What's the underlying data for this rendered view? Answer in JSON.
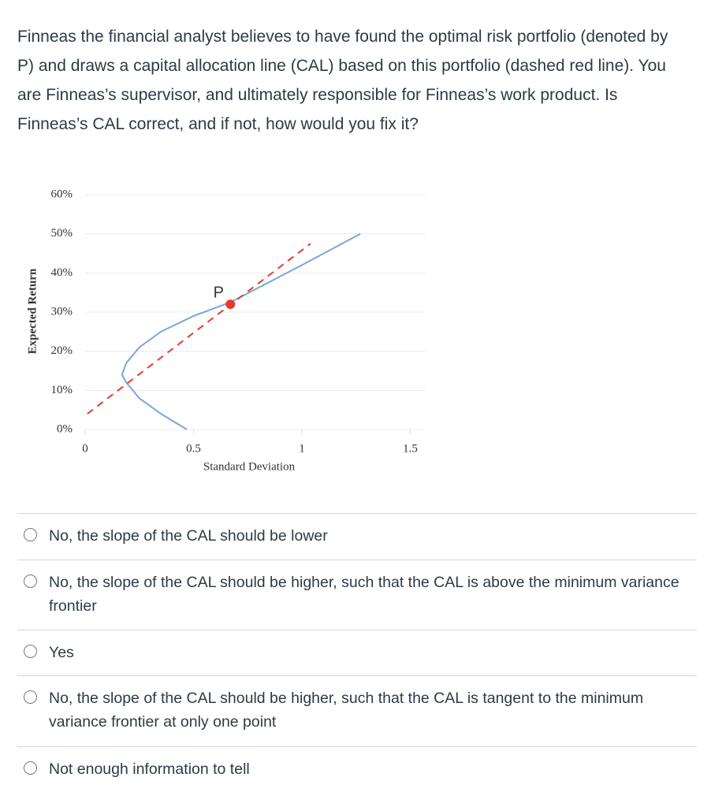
{
  "question": "Finneas the financial analyst believes to have found the optimal risk portfolio (denoted by P) and draws a capital allocation line (CAL) based on this portfolio (dashed red line). You are Finneas’s supervisor, and ultimately responsible for Finneas’s work product. Is Finneas’s CAL correct, and if not, how would you fix it?",
  "chart_data": {
    "type": "line",
    "x_label": "Standard Deviation",
    "y_label": "Expected Return",
    "xlim": [
      0,
      1.6
    ],
    "ylim": [
      0,
      60
    ],
    "xticks": [
      0,
      0.5,
      1,
      1.5
    ],
    "yticks": [
      {
        "value": 0,
        "label": "0%"
      },
      {
        "value": 10,
        "label": "10%"
      },
      {
        "value": 20,
        "label": "20%"
      },
      {
        "value": 30,
        "label": "30%"
      },
      {
        "value": 40,
        "label": "40%"
      },
      {
        "value": 50,
        "label": "50%"
      },
      {
        "value": 60,
        "label": "60%"
      }
    ],
    "grid": true,
    "series": [
      {
        "color": "#7aa6dc",
        "dash": false,
        "x": [
          0.47,
          0.35,
          0.25,
          0.19,
          0.17,
          0.19,
          0.25,
          0.35,
          0.5,
          0.67,
          1.0,
          1.27
        ],
        "values": [
          0,
          4,
          8,
          12,
          14,
          17,
          21,
          25,
          29,
          32.5,
          42,
          50
        ]
      },
      {
        "color": "#e8392c",
        "dash": true,
        "x": [
          0.01,
          1.04
        ],
        "values": [
          4,
          47.5
        ]
      }
    ],
    "points": [
      {
        "label": "P",
        "x": 0.67,
        "y": 32,
        "color": "#e8392c"
      }
    ]
  },
  "options": [
    "No, the slope of the CAL should be lower",
    "No, the slope of the CAL should be higher, such that the CAL is above the minimum variance frontier",
    "Yes",
    "No, the slope of the CAL should be higher, such that the CAL is tangent to the minimum variance frontier at only one point",
    "Not enough information to tell"
  ]
}
